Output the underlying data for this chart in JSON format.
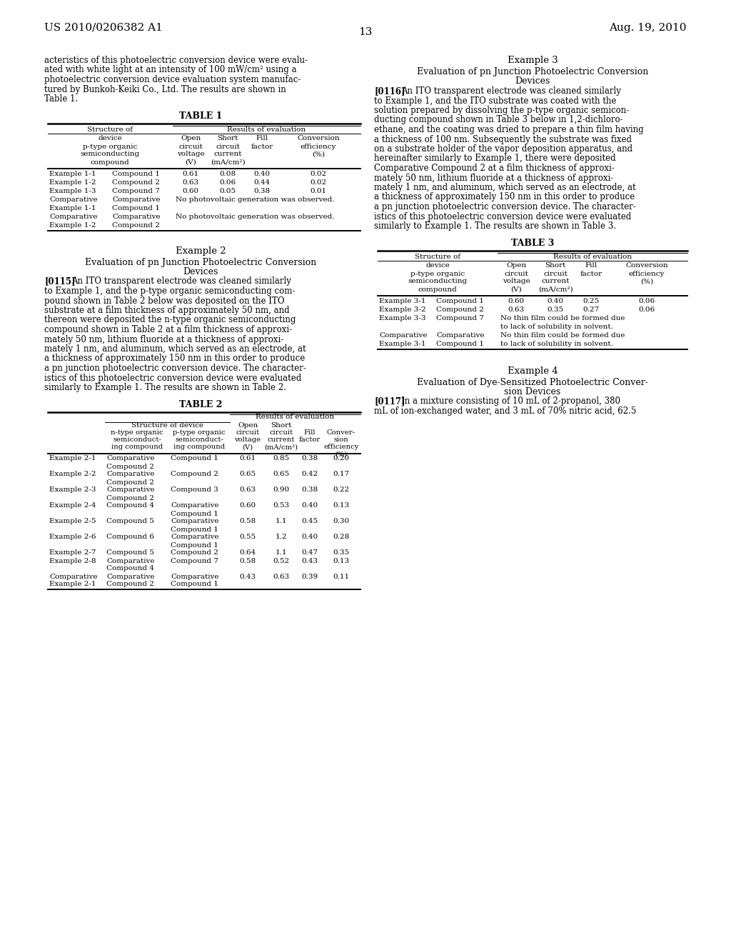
{
  "bg_color": "#ffffff",
  "header_left": "US 2010/0206382 A1",
  "header_right": "Aug. 19, 2010",
  "page_number": "13",
  "intro_text": "acteristics of this photoelectric conversion device were evalu-ated with white light at an intensity of 100 mW/cm² using a photoelectric conversion device evaluation system manufac-tured by Bunkoh-Keiki Co., Ltd. The results are shown in Table 1.",
  "example2_title": "Example 2",
  "example2_subtitle1": "Evaluation of pn Junction Photoelectric Conversion",
  "example2_subtitle2": "Devices",
  "example2_para": "[0115] An ITO transparent electrode was cleaned similarly to Example 1, and the p-type organic semiconducting com-pound shown in Table 2 below was deposited on the ITO substrate at a film thickness of approximately 50 nm, and thereon were deposited the n-type organic semiconducting compound shown in Table 2 at a film thickness of approxi-mately 50 nm, lithium fluoride at a thickness of approxi-mately 1 nm, and aluminum, which served as an electrode, at a thickness of approximately 150 nm in this order to produce a pn junction photoelectric conversion device. The character-istics of this photoelectric conversion device were evaluated similarly to Example 1. The results are shown in Table 2.",
  "example3_title": "Example 3",
  "example3_subtitle1": "Evaluation of pn Junction Photoelectric Conversion",
  "example3_subtitle2": "Devices",
  "example3_para": "[0116] An ITO transparent electrode was cleaned similarly to Example 1, and the ITO substrate was coated with the solution prepared by dissolving the p-type organic semicon-ducting compound shown in Table 3 below in 1,2-dichloro-ethane, and the coating was dried to prepare a thin film having a thickness of 100 nm. Subsequently the substrate was fixed on a substrate holder of the vapor deposition apparatus, and hereinafter similarly to Example 1, there were deposited Comparative Compound 2 at a film thickness of approxi-mately 50 nm, lithium fluoride at a thickness of approxi-mately 1 nm, and aluminum, which served as an electrode, at a thickness of approximately 150 nm in this order to produce a pn junction photoelectric conversion device. The character-istics of this photoelectric conversion device were evaluated similarly to Example 1. The results are shown in Table 3.",
  "example4_title": "Example 4",
  "example4_subtitle1": "Evaluation of Dye-Sensitized Photoelectric Conver-",
  "example4_subtitle2": "sion Devices",
  "example4_para": "[0117] In a mixture consisting of 10 mL of 2-propanol, 380 mL of ion-exchanged water, and 3 mL of 70% nitric acid, 62.5"
}
